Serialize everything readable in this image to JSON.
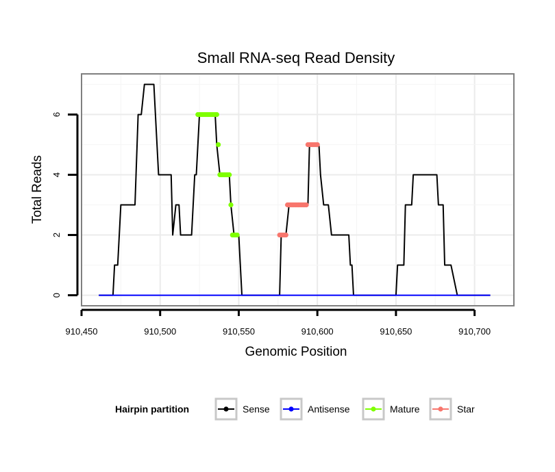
{
  "chart_data": {
    "type": "line",
    "title": "Small RNA-seq Read Density",
    "xlabel": "Genomic Position",
    "ylabel": "Total Reads",
    "xlim": [
      910450,
      910725
    ],
    "ylim": [
      -0.35,
      7.35
    ],
    "x_ticks": [
      910450,
      910500,
      910550,
      910600,
      910650,
      910700
    ],
    "x_tick_labels": [
      "910,450",
      "910,500",
      "910,550",
      "910,600",
      "910,650",
      "910,700"
    ],
    "y_ticks": [
      0,
      2,
      4,
      6
    ],
    "y_tick_labels": [
      "0",
      "2",
      "4",
      "6"
    ],
    "grid": true,
    "legend": {
      "title": "Hairpin partition",
      "position": "bottom",
      "entries": [
        "Sense",
        "Antisense",
        "Mature",
        "Star"
      ]
    },
    "series": [
      {
        "name": "Sense",
        "color": "#000000",
        "style": "line",
        "x": [
          910461,
          910470,
          910471,
          910473,
          910475,
          910476,
          910478,
          910480,
          910482,
          910484,
          910486,
          910487,
          910488,
          910490,
          910494,
          910496,
          910497,
          910499,
          910502,
          910504,
          910507,
          910508,
          910510,
          910512,
          910513,
          910514,
          910516,
          910520,
          910522,
          910523,
          910525,
          910526,
          910528,
          910535,
          910536,
          910538,
          910544,
          910545,
          910547,
          910549,
          910550,
          910552,
          910562,
          910576,
          910577,
          910578,
          910580,
          910582,
          910584,
          910593,
          910594,
          910595,
          910597,
          910601,
          910602,
          910604,
          910606,
          910607,
          910609,
          910620,
          910621,
          910622,
          910623,
          910624,
          910625,
          910627,
          910643,
          910650,
          910651,
          910655,
          910656,
          910660,
          910661,
          910662,
          910663,
          910665,
          910676,
          910677,
          910679,
          910680,
          910681,
          910682,
          910683,
          910684,
          910685,
          910689,
          910690,
          910692,
          910710
        ],
        "y": [
          0,
          0,
          1,
          1,
          3,
          3,
          3,
          3,
          3,
          3,
          6,
          6,
          6,
          7,
          7,
          7,
          6,
          4,
          4,
          4,
          4,
          2,
          3,
          3,
          2,
          2,
          2,
          2,
          4,
          4,
          6,
          6,
          6,
          6,
          5,
          4,
          4,
          3,
          2,
          2,
          2,
          0,
          0,
          0,
          2,
          2,
          2,
          3,
          3,
          3,
          3,
          5,
          5,
          5,
          4,
          3,
          3,
          3,
          2,
          2,
          1,
          1,
          0,
          0,
          0,
          0,
          0,
          0,
          1,
          1,
          3,
          3,
          4,
          4,
          4,
          4,
          4,
          3,
          3,
          3,
          1,
          1,
          1,
          1,
          1,
          0,
          0,
          0,
          0
        ]
      },
      {
        "name": "Antisense",
        "color": "#0000ff",
        "style": "line",
        "x": [
          910461,
          910710
        ],
        "y": [
          0,
          0
        ]
      },
      {
        "name": "Mature",
        "color": "#7fff00",
        "style": "points",
        "x": [
          910524,
          910525,
          910526,
          910527,
          910528,
          910529,
          910530,
          910531,
          910532,
          910533,
          910534,
          910535,
          910536,
          910537,
          910538,
          910539,
          910540,
          910541,
          910542,
          910543,
          910544,
          910545,
          910546,
          910547,
          910548,
          910549
        ],
        "y": [
          6,
          6,
          6,
          6,
          6,
          6,
          6,
          6,
          6,
          6,
          6,
          6,
          6,
          5,
          4,
          4,
          4,
          4,
          4,
          4,
          4,
          3,
          2,
          2,
          2,
          2
        ]
      },
      {
        "name": "Star",
        "color": "#f8766d",
        "style": "points",
        "x": [
          910576,
          910577,
          910578,
          910579,
          910580,
          910581,
          910582,
          910583,
          910584,
          910585,
          910586,
          910587,
          910588,
          910589,
          910590,
          910591,
          910592,
          910593,
          910594,
          910595,
          910596,
          910597,
          910598,
          910599,
          910600
        ],
        "y": [
          2,
          2,
          2,
          2,
          2,
          3,
          3,
          3,
          3,
          3,
          3,
          3,
          3,
          3,
          3,
          3,
          3,
          3,
          5,
          5,
          5,
          5,
          5,
          5,
          5
        ]
      }
    ]
  }
}
